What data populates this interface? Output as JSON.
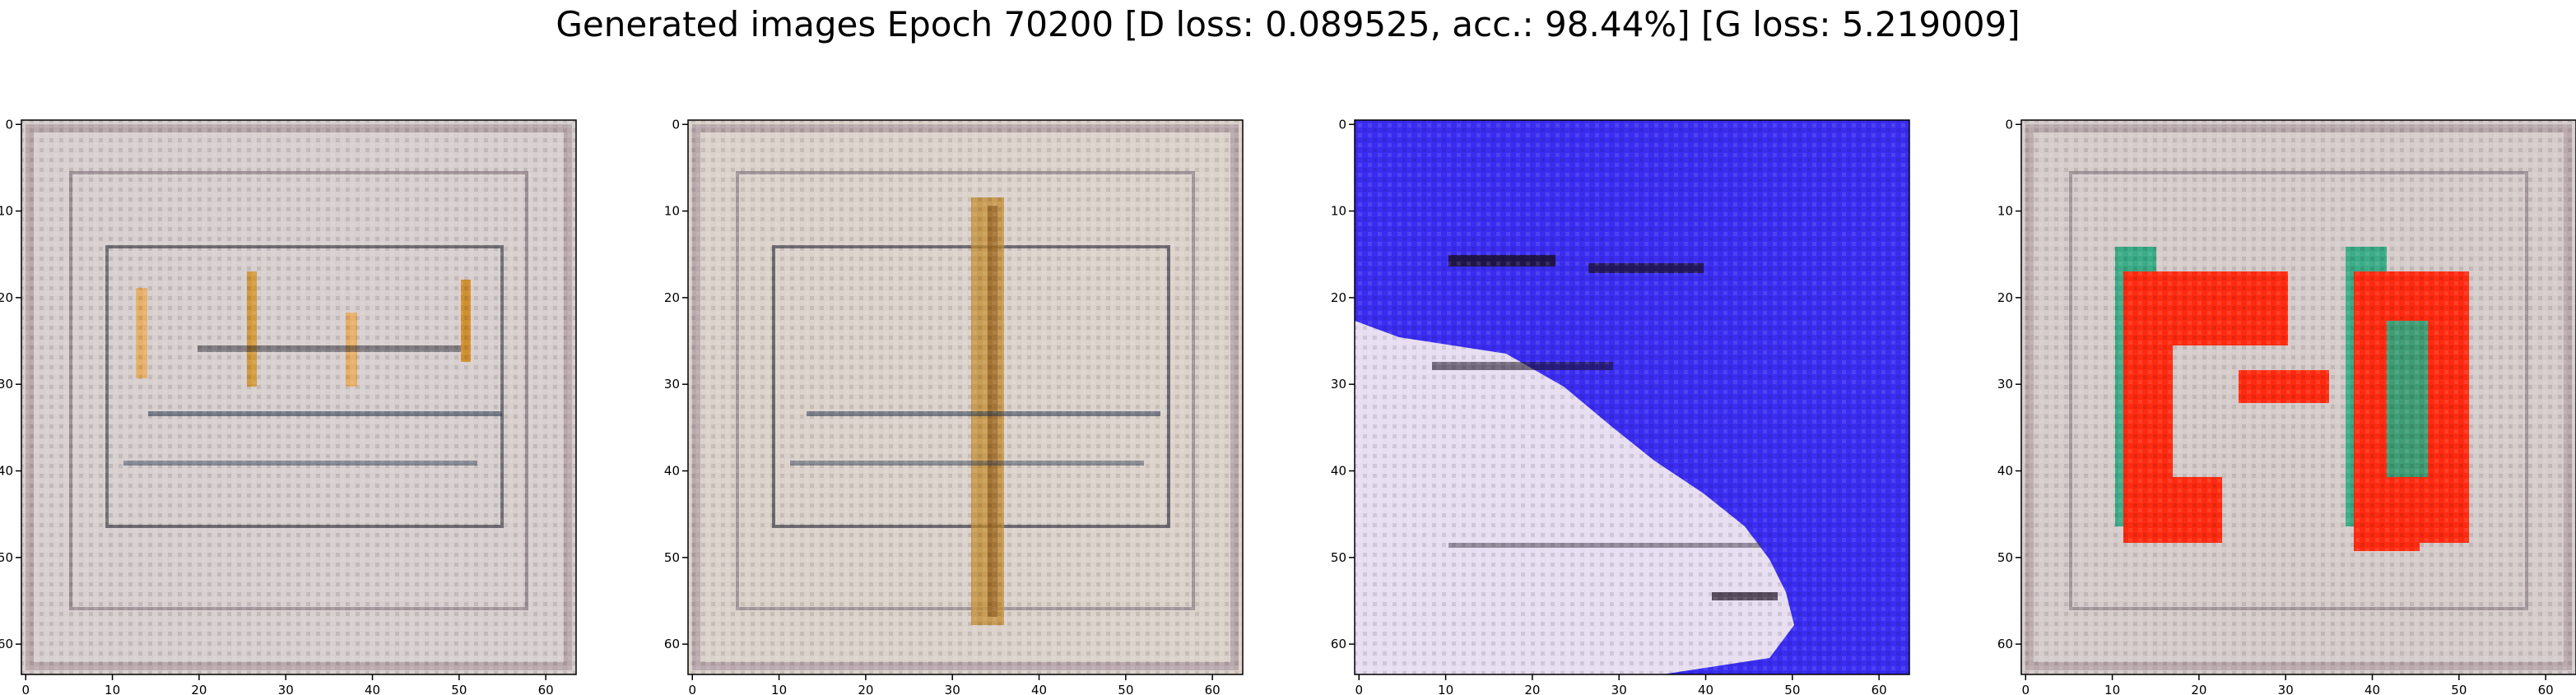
{
  "title": "Generated images Epoch 70200 [D loss: 0.089525, acc.: 98.44%] [G loss: 5.219009]",
  "chart_data": [
    {
      "type": "heatmap",
      "xlim": [
        0,
        63
      ],
      "ylim": [
        63,
        0
      ],
      "xticks": [
        0,
        10,
        20,
        30,
        40,
        50,
        60
      ],
      "yticks": [
        0,
        10,
        20,
        30,
        40,
        50,
        60
      ],
      "grid": false,
      "image": {
        "size": [
          64,
          64
        ],
        "background": "#d8cfcf",
        "dominant_colors": [
          "#d8cfcf",
          "#e6b06a",
          "#22334a"
        ]
      }
    },
    {
      "type": "heatmap",
      "xlim": [
        0,
        63
      ],
      "ylim": [
        63,
        0
      ],
      "xticks": [
        0,
        10,
        20,
        30,
        40,
        50,
        60
      ],
      "yticks": [
        0,
        10,
        20,
        30,
        40,
        50,
        60
      ],
      "grid": false,
      "image": {
        "size": [
          64,
          64
        ],
        "background": "#dcd2cc",
        "dominant_colors": [
          "#dcd2cc",
          "#c28a2e",
          "#22334a"
        ]
      }
    },
    {
      "type": "heatmap",
      "xlim": [
        0,
        63
      ],
      "ylim": [
        63,
        0
      ],
      "xticks": [
        0,
        10,
        20,
        30,
        40,
        50,
        60
      ],
      "yticks": [
        0,
        10,
        20,
        30,
        40,
        50,
        60
      ],
      "grid": false,
      "image": {
        "size": [
          64,
          64
        ],
        "background": "#3a2cf0",
        "dominant_colors": [
          "#3a2cf0",
          "#f0e8f0",
          "#1a1020"
        ]
      }
    },
    {
      "type": "heatmap",
      "xlim": [
        0,
        63
      ],
      "ylim": [
        63,
        0
      ],
      "xticks": [
        0,
        10,
        20,
        30,
        40,
        50,
        60
      ],
      "yticks": [
        0,
        10,
        20,
        30,
        40,
        50,
        60
      ],
      "grid": false,
      "image": {
        "size": [
          64,
          64
        ],
        "background": "#d6cccc",
        "dominant_colors": [
          "#d6cccc",
          "#ff2a10",
          "#2aa880"
        ]
      }
    }
  ]
}
